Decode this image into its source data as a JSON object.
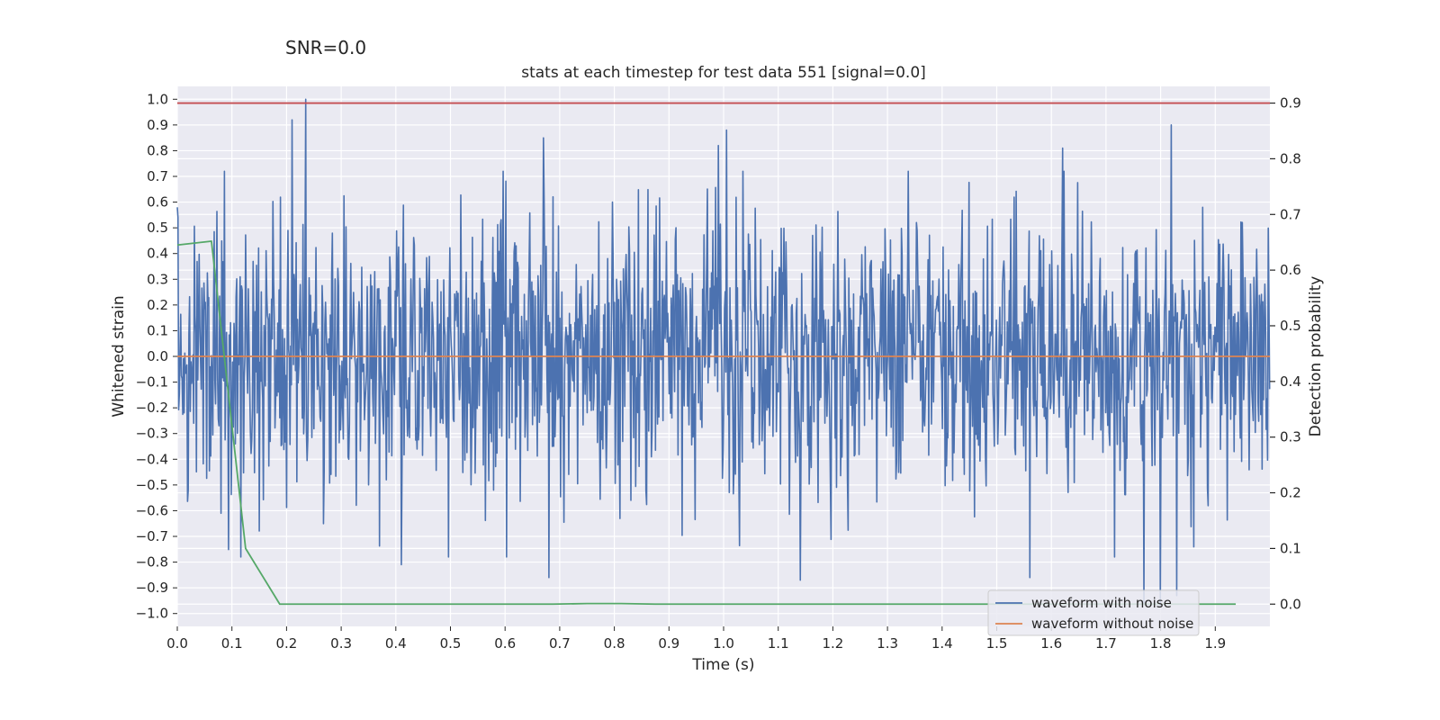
{
  "chart_data": {
    "type": "line",
    "suptitle": "SNR=0.0",
    "title": "stats at each timestep for test data 551 [signal=0.0]",
    "xlabel": "Time (s)",
    "ylabel": "Whitened strain",
    "ylabel_right": "Detection probability",
    "xlim": [
      0.0,
      2.0
    ],
    "ylim": [
      -1.05,
      1.05
    ],
    "ylim_right": [
      -0.04,
      0.93
    ],
    "x_ticks": [
      0.0,
      0.1,
      0.2,
      0.3,
      0.4,
      0.5,
      0.6,
      0.7,
      0.8,
      0.9,
      1.0,
      1.1,
      1.2,
      1.3,
      1.4,
      1.5,
      1.6,
      1.7,
      1.8,
      1.9
    ],
    "x_tick_labels": [
      "0.0",
      "0.1",
      "0.2",
      "0.3",
      "0.4",
      "0.5",
      "0.6",
      "0.7",
      "0.8",
      "0.9",
      "1.0",
      "1.1",
      "1.2",
      "1.3",
      "1.4",
      "1.5",
      "1.6",
      "1.7",
      "1.8",
      "1.9"
    ],
    "y_ticks": [
      1.0,
      0.9,
      0.8,
      0.7,
      0.6,
      0.5,
      0.4,
      0.3,
      0.2,
      0.1,
      0.0,
      -0.1,
      -0.2,
      -0.3,
      -0.4,
      -0.5,
      -0.6,
      -0.7,
      -0.8,
      -0.9,
      -1.0
    ],
    "y_tick_labels": [
      "1.0",
      "0.9",
      "0.8",
      "0.7",
      "0.6",
      "0.5",
      "0.4",
      "0.3",
      "0.2",
      "0.1",
      "0.0",
      "−0.1",
      "−0.2",
      "−0.3",
      "−0.4",
      "−0.5",
      "−0.6",
      "−0.7",
      "−0.8",
      "−0.9",
      "−1.0"
    ],
    "y_right_ticks": [
      0.9,
      0.8,
      0.7,
      0.6,
      0.5,
      0.4,
      0.3,
      0.2,
      0.1,
      0.0
    ],
    "y_right_tick_labels": [
      "0.9",
      "0.8",
      "0.7",
      "0.6",
      "0.5",
      "0.4",
      "0.3",
      "0.2",
      "0.1",
      "0.0"
    ],
    "grid": true,
    "legend_position": "bottom-right",
    "series": [
      {
        "name": "waveform with noise",
        "color": "#4c72b0",
        "axis": "left",
        "noise": {
          "x_start": 0.0,
          "x_end": 1.9995,
          "n_points": 1600,
          "seed": 551,
          "peaks": [
            [
              0.0,
              0.58
            ],
            [
              0.08,
              0.74
            ],
            [
              0.21,
              0.92
            ],
            [
              0.235,
              1.0
            ],
            [
              0.67,
              0.85
            ],
            [
              0.99,
              0.82
            ],
            [
              1.005,
              0.88
            ],
            [
              1.62,
              0.81
            ],
            [
              1.82,
              0.9
            ]
          ],
          "troughs": [
            [
              0.08,
              -0.61
            ],
            [
              0.41,
              -0.81
            ],
            [
              0.68,
              -0.86
            ],
            [
              1.14,
              -0.87
            ],
            [
              1.56,
              -0.86
            ],
            [
              1.77,
              -0.96
            ],
            [
              1.8,
              -0.97
            ],
            [
              1.83,
              -0.93
            ]
          ]
        }
      },
      {
        "name": "waveform without noise",
        "color": "#dd8452",
        "axis": "left",
        "x": [
          0.0,
          2.0
        ],
        "y": [
          0.0,
          0.0
        ]
      },
      {
        "name": "detection probability",
        "color": "#55a868",
        "axis": "right",
        "x": [
          0.0,
          0.0625,
          0.125,
          0.1875,
          0.25,
          0.3125,
          0.375,
          0.4375,
          0.5,
          0.5625,
          0.625,
          0.6875,
          0.75,
          0.8125,
          0.875,
          0.9375,
          1.0,
          1.0625,
          1.125,
          1.1875,
          1.25,
          1.3125,
          1.375,
          1.4375,
          1.5,
          1.5625,
          1.625,
          1.6875,
          1.75,
          1.8125,
          1.875,
          1.9375
        ],
        "y": [
          0.645,
          0.652,
          0.1,
          0.0,
          0.0,
          0.0,
          0.0,
          0.0,
          0.0,
          0.0,
          0.0,
          0.0,
          0.001,
          0.001,
          0.0,
          0.0,
          0.0,
          0.0,
          0.0,
          0.0,
          0.0,
          0.0,
          0.0,
          0.0,
          0.0,
          0.0,
          0.0,
          0.0,
          0.0,
          0.0,
          0.0,
          0.0
        ]
      },
      {
        "name": "threshold",
        "color": "#c44e52",
        "axis": "right",
        "x": [
          0.0,
          2.0
        ],
        "y": [
          0.9,
          0.9
        ]
      }
    ],
    "legend": [
      {
        "label": "waveform with noise",
        "color": "#4c72b0"
      },
      {
        "label": "waveform without noise",
        "color": "#dd8452"
      }
    ]
  }
}
